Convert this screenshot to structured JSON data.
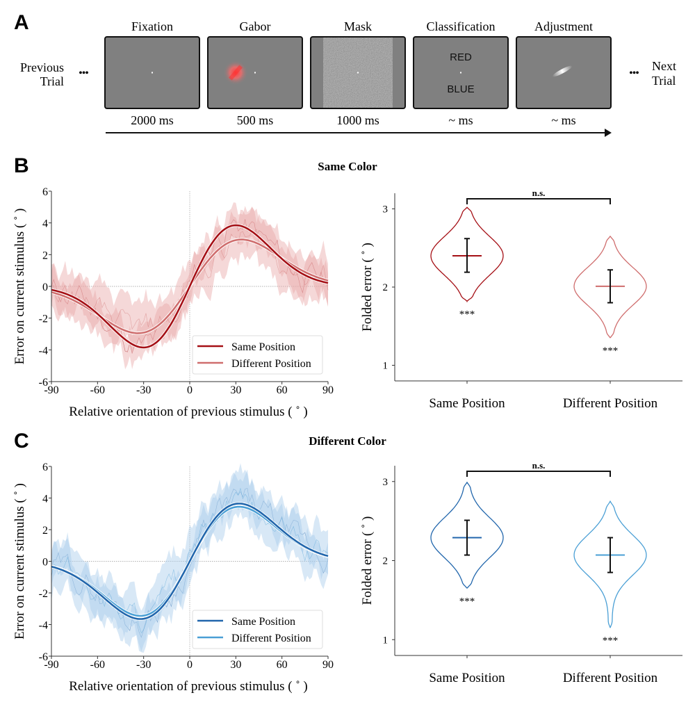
{
  "panels": {
    "a": {
      "label": "A"
    },
    "b": {
      "label": "B",
      "title": "Same Color"
    },
    "c": {
      "label": "C",
      "title": "Different Color"
    }
  },
  "trial": {
    "previous_label_line1": "Previous",
    "previous_label_line2": "Trial",
    "next_label_line1": "Next",
    "next_label_line2": "Trial",
    "ellipsis": "•••",
    "screens": [
      {
        "title": "Fixation",
        "duration": "2000 ms",
        "content": "fixation-dot"
      },
      {
        "title": "Gabor",
        "duration": "500 ms",
        "content": "red-gabor-patch"
      },
      {
        "title": "Mask",
        "duration": "1000 ms",
        "content": "noise-mask"
      },
      {
        "title": "Classification",
        "duration": "~ ms",
        "content": "color-choice",
        "option_top": "RED",
        "option_bottom": "BLUE"
      },
      {
        "title": "Adjustment",
        "duration": "~ ms",
        "content": "orientation-probe"
      }
    ]
  },
  "colors": {
    "red_same": "#a50f15",
    "red_diff": "#cf6d6d",
    "red_band": "#e8a9a9",
    "blue_same": "#2166ac",
    "blue_diff": "#4a9fd5",
    "blue_band": "#a9cdea",
    "screen_gray": "#808080"
  },
  "chart_data": [
    {
      "id": "b-left",
      "type": "line",
      "title": "",
      "xlabel": "Relative orientation of previous stimulus ( ˚ )",
      "ylabel": "Error on current stimulus ( ˚ )",
      "xlim": [
        -90,
        90
      ],
      "ylim": [
        -6,
        6
      ],
      "xticks": [
        "-90",
        "-60",
        "-30",
        "0",
        "30",
        "60",
        "90"
      ],
      "yticks": [
        "-6",
        "-4",
        "-2",
        "0",
        "2",
        "4",
        "6"
      ],
      "legend": {
        "placement": "lower-right",
        "entries": [
          "Same Position",
          "Different Position"
        ]
      },
      "series": [
        {
          "name": "Same Position",
          "color_key": "red_same",
          "peak_x": 29,
          "amplitude": 3.85,
          "width": 0.0235
        },
        {
          "name": "Different Position",
          "color_key": "red_diff",
          "peak_x": 33,
          "amplitude": 2.95,
          "width": 0.021
        }
      ]
    },
    {
      "id": "b-right",
      "type": "violin",
      "ylabel": "Folded error ( ˚ )",
      "ylim": [
        0.8,
        3.2
      ],
      "yticks": [
        "1",
        "2",
        "3"
      ],
      "categories": [
        "Same Position",
        "Different Position"
      ],
      "significance": "n.s.",
      "violins": [
        {
          "name": "Same Position",
          "color_key": "red_same",
          "mean": 2.4,
          "err_low": 2.19,
          "err_high": 2.62,
          "min": 1.82,
          "max": 3.02,
          "star": "***"
        },
        {
          "name": "Different Position",
          "color_key": "red_diff",
          "mean": 2.01,
          "err_low": 1.8,
          "err_high": 2.22,
          "min": 1.35,
          "max": 2.65,
          "star": "***"
        }
      ]
    },
    {
      "id": "c-left",
      "type": "line",
      "title": "",
      "xlabel": "Relative orientation of previous stimulus ( ˚ )",
      "ylabel": "Error on current stimulus ( ˚ )",
      "xlim": [
        -90,
        90
      ],
      "ylim": [
        -6,
        6
      ],
      "xticks": [
        "-90",
        "-60",
        "-30",
        "0",
        "30",
        "60",
        "90"
      ],
      "yticks": [
        "-6",
        "-4",
        "-2",
        "0",
        "2",
        "4",
        "6"
      ],
      "legend": {
        "placement": "lower-right",
        "entries": [
          "Same Position",
          "Different Position"
        ]
      },
      "series": [
        {
          "name": "Same Position",
          "color_key": "blue_same",
          "peak_x": 29,
          "amplitude": 3.65,
          "width": 0.022
        },
        {
          "name": "Different Position",
          "color_key": "blue_diff",
          "peak_x": 29,
          "amplitude": 3.45,
          "width": 0.022
        }
      ]
    },
    {
      "id": "c-right",
      "type": "violin",
      "ylabel": "Folded error ( ˚ )",
      "ylim": [
        0.8,
        3.2
      ],
      "yticks": [
        "1",
        "2",
        "3"
      ],
      "categories": [
        "Same Position",
        "Different Position"
      ],
      "significance": "n.s.",
      "violins": [
        {
          "name": "Same Position",
          "color_key": "blue_same",
          "mean": 2.29,
          "err_low": 2.07,
          "err_high": 2.51,
          "min": 1.65,
          "max": 2.99,
          "star": "***"
        },
        {
          "name": "Different Position",
          "color_key": "blue_diff",
          "mean": 2.07,
          "err_low": 1.85,
          "err_high": 2.29,
          "min": 1.15,
          "max": 2.75,
          "star": "***"
        }
      ]
    }
  ]
}
